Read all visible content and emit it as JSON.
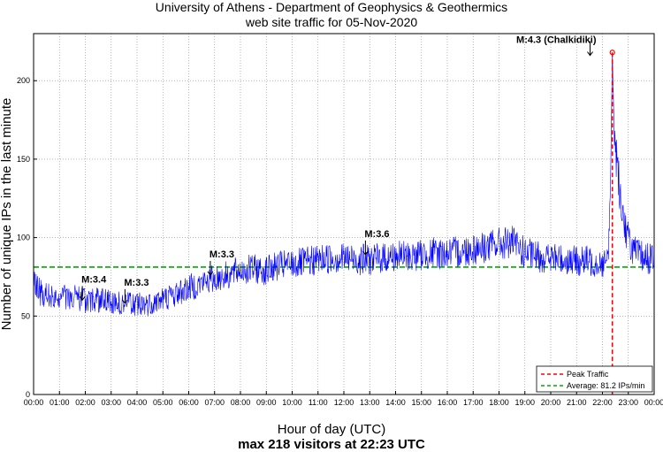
{
  "chart_data": {
    "type": "line",
    "title_line1": "University of Athens - Department of Geophysics & Geothermics",
    "title_line2": "web site traffic for 05-Nov-2020",
    "ylabel": "Number of unique IPs in the last minute",
    "xlabel": "Hour of day (UTC)",
    "subtitle": "max 218 visitors at 22:23 UTC",
    "ylim": [
      0,
      230
    ],
    "xlim_minutes": [
      0,
      1440
    ],
    "y_ticks": [
      "0",
      "50",
      "100",
      "150",
      "200"
    ],
    "y_tick_values": [
      0,
      50,
      100,
      150,
      200
    ],
    "x_ticks": [
      "00:00",
      "01:00",
      "02:00",
      "03:00",
      "04:00",
      "05:00",
      "06:00",
      "07:00",
      "08:00",
      "09:00",
      "10:00",
      "11:00",
      "12:00",
      "13:00",
      "14:00",
      "15:00",
      "16:00",
      "17:00",
      "18:00",
      "19:00",
      "20:00",
      "21:00",
      "22:00",
      "23:00",
      "00:00"
    ],
    "grid": true,
    "series": [
      {
        "name": "traffic",
        "color": "#0000ff",
        "x_hours": [
          0,
          0.25,
          0.5,
          0.75,
          1,
          1.5,
          2,
          2.5,
          3,
          3.5,
          4,
          4.5,
          5,
          5.5,
          6,
          6.5,
          7,
          7.5,
          8,
          8.5,
          9,
          9.5,
          10,
          10.5,
          11,
          11.5,
          12,
          12.5,
          13,
          13.5,
          14,
          14.5,
          15,
          15.5,
          16,
          16.5,
          17,
          17.5,
          18,
          18.5,
          19,
          19.5,
          20,
          20.5,
          21,
          21.5,
          22,
          22.2,
          22.3,
          22.383,
          22.45,
          22.55,
          22.7,
          22.9,
          23.1,
          23.3,
          23.5,
          23.75,
          24
        ],
        "y": [
          72,
          65,
          63,
          62,
          63,
          62,
          60,
          60,
          59,
          58,
          57,
          58,
          61,
          64,
          68,
          71,
          74,
          76,
          79,
          80,
          79,
          82,
          83,
          84,
          86,
          87,
          87,
          86,
          86,
          87,
          88,
          88,
          89,
          90,
          90,
          91,
          93,
          94,
          96,
          97,
          90,
          88,
          87,
          86,
          85,
          85,
          84,
          84,
          120,
          218,
          170,
          150,
          125,
          105,
          95,
          90,
          88,
          87,
          86
        ]
      }
    ],
    "average": {
      "value": 81.2,
      "color": "#00aa00",
      "label": "Average: 81.2 IPs/min"
    },
    "peak": {
      "time_hours": 22.383,
      "value": 218,
      "color": "#ff0000",
      "label": "Peak Traffic"
    },
    "annotations": [
      {
        "text": "M:3.4",
        "time_hours": 1.85,
        "value": 59
      },
      {
        "text": "M:3.3",
        "time_hours": 3.5,
        "value": 57
      },
      {
        "text": "M:3.3",
        "time_hours": 6.8,
        "value": 75
      },
      {
        "text": "M:3.6",
        "time_hours": 12.8,
        "value": 88
      },
      {
        "text": "M:4.3 (Chalkidiki)",
        "time_hours": 22.0,
        "value": 215
      }
    ],
    "legend_position": "bottom-right"
  }
}
